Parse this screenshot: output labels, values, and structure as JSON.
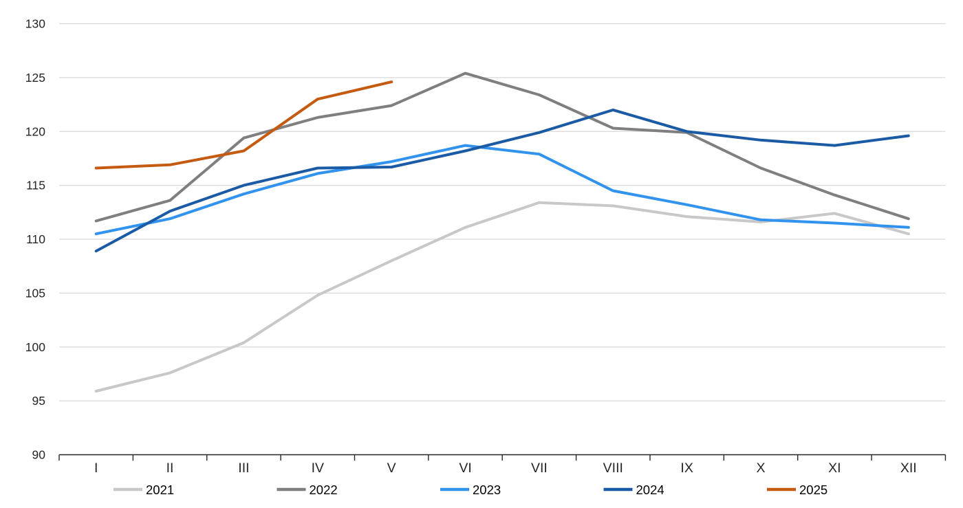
{
  "chart_data": {
    "type": "line",
    "title": "",
    "categories": [
      "I",
      "II",
      "III",
      "IV",
      "V",
      "VI",
      "VII",
      "VIII",
      "IX",
      "X",
      "XI",
      "XII"
    ],
    "series": [
      {
        "name": "2021",
        "color": "#c8c8c8",
        "values": [
          95.9,
          97.6,
          100.4,
          104.8,
          108.0,
          111.1,
          113.4,
          113.1,
          112.1,
          111.6,
          112.4,
          110.5
        ]
      },
      {
        "name": "2022",
        "color": "#7f7f7f",
        "values": [
          111.7,
          113.6,
          119.4,
          121.3,
          122.4,
          125.4,
          123.4,
          120.3,
          119.9,
          116.6,
          114.1,
          111.9
        ]
      },
      {
        "name": "2023",
        "color": "#3193ee",
        "values": [
          110.5,
          111.9,
          114.2,
          116.1,
          117.2,
          118.7,
          117.9,
          114.5,
          113.2,
          111.8,
          111.5,
          111.1
        ]
      },
      {
        "name": "2024",
        "color": "#1b5aa5",
        "values": [
          108.9,
          112.6,
          115.0,
          116.6,
          116.7,
          118.2,
          119.9,
          122.0,
          120.0,
          119.2,
          118.7,
          119.6
        ]
      },
      {
        "name": "2025",
        "color": "#c55a11",
        "values": [
          116.6,
          116.9,
          118.2,
          123.0,
          124.6,
          null,
          null,
          null,
          null,
          null,
          null,
          null
        ]
      }
    ],
    "xlabel": "",
    "ylabel": "",
    "ylim": [
      90,
      130
    ],
    "yticks": [
      90,
      95,
      100,
      105,
      110,
      115,
      120,
      125,
      130
    ],
    "grid": true,
    "legend_position": "bottom",
    "legend_labels": [
      "2021",
      "2022",
      "2023",
      "2024",
      "2025"
    ],
    "colors": {
      "gridline": "#d9d9d9",
      "axis": "#262626",
      "text": "#262626",
      "legend_text": "#000000",
      "background": "#ffffff"
    }
  }
}
